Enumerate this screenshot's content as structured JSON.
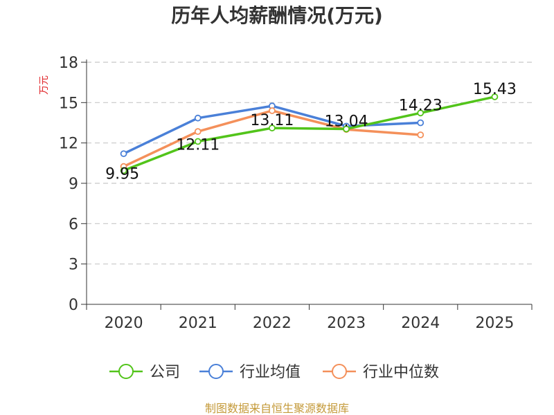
{
  "chart_data": {
    "type": "line",
    "title": "历年人均薪酬情况(万元)",
    "ylabel": "万元",
    "xlabel": "",
    "categories": [
      "2020",
      "2021",
      "2022",
      "2023",
      "2024",
      "2025"
    ],
    "ylim": [
      0,
      18
    ],
    "yticks": [
      0,
      3,
      6,
      9,
      12,
      15,
      18
    ],
    "grid": true,
    "legend_position": "bottom",
    "series": [
      {
        "name": "公司",
        "color": "#52c41a",
        "values": [
          9.95,
          12.11,
          13.11,
          13.04,
          14.23,
          15.43
        ],
        "labels": [
          "9.95",
          "12.11",
          "13.11",
          "13.04",
          "14.23",
          "15.43"
        ]
      },
      {
        "name": "行业均值",
        "color": "#4a80d8",
        "values": [
          11.2,
          13.85,
          14.75,
          13.25,
          13.5,
          null
        ]
      },
      {
        "name": "行业中位数",
        "color": "#f4905a",
        "values": [
          10.25,
          12.85,
          14.4,
          13.0,
          12.6,
          null
        ]
      }
    ]
  },
  "source": "制图数据来自恒生聚源数据库"
}
